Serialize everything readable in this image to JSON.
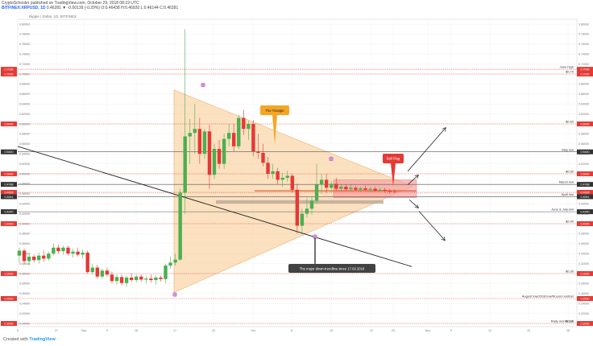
{
  "header": {
    "author": "CryptoSchooler",
    "published": "published on TradingView.com, October 29, 2018 08:19 UTC",
    "symbol_line": "BITFINEX:XRPUSD, 1D",
    "ohlc": "0.46281 ▼ -0.00139 (-0.29%) O:0.46438 H:0.46920 L:0.46144 C:0.46281"
  },
  "subtitle": "Ripple / Dollar, 1D, BITFINEX",
  "footer": {
    "prefix": "Created with",
    "logo": "TradingView"
  },
  "colors": {
    "up": "#4caf50",
    "down": "#e53935",
    "triangle": "#f8c98c",
    "level": "#e53935",
    "support": "#b0a090",
    "flag": "#f7a3a3"
  },
  "chart_data": {
    "type": "candlestick",
    "ylim": [
      0.18,
      0.82
    ],
    "y_ticks": [
      0.8,
      0.78,
      0.76,
      0.74,
      0.72,
      0.7,
      0.68,
      0.66,
      0.64,
      0.62,
      0.6,
      0.58,
      0.56,
      0.54,
      0.52,
      0.5,
      0.48,
      0.46,
      0.44,
      0.42,
      0.4,
      0.38,
      0.36,
      0.34,
      0.32,
      0.3,
      0.28,
      0.26,
      0.24,
      0.22,
      0.2
    ],
    "x_ticks": [
      "6",
      "27",
      "Sep",
      "9",
      "16",
      "17",
      "24",
      "Oct",
      "8",
      "15",
      "22",
      "29",
      "Nov",
      "5",
      "12",
      "19",
      "26"
    ],
    "candles": [
      {
        "o": 0.336,
        "h": 0.352,
        "l": 0.322,
        "c": 0.346
      },
      {
        "o": 0.346,
        "h": 0.35,
        "l": 0.318,
        "c": 0.325
      },
      {
        "o": 0.325,
        "h": 0.34,
        "l": 0.316,
        "c": 0.334
      },
      {
        "o": 0.334,
        "h": 0.338,
        "l": 0.322,
        "c": 0.327
      },
      {
        "o": 0.327,
        "h": 0.342,
        "l": 0.32,
        "c": 0.336
      },
      {
        "o": 0.336,
        "h": 0.346,
        "l": 0.324,
        "c": 0.33
      },
      {
        "o": 0.33,
        "h": 0.344,
        "l": 0.326,
        "c": 0.34
      },
      {
        "o": 0.34,
        "h": 0.36,
        "l": 0.336,
        "c": 0.352
      },
      {
        "o": 0.352,
        "h": 0.358,
        "l": 0.34,
        "c": 0.345
      },
      {
        "o": 0.345,
        "h": 0.356,
        "l": 0.338,
        "c": 0.352
      },
      {
        "o": 0.352,
        "h": 0.356,
        "l": 0.336,
        "c": 0.34
      },
      {
        "o": 0.34,
        "h": 0.35,
        "l": 0.332,
        "c": 0.344
      },
      {
        "o": 0.344,
        "h": 0.352,
        "l": 0.334,
        "c": 0.338
      },
      {
        "o": 0.338,
        "h": 0.348,
        "l": 0.33,
        "c": 0.342
      },
      {
        "o": 0.342,
        "h": 0.346,
        "l": 0.3,
        "c": 0.303
      },
      {
        "o": 0.303,
        "h": 0.32,
        "l": 0.298,
        "c": 0.312
      },
      {
        "o": 0.312,
        "h": 0.318,
        "l": 0.29,
        "c": 0.294
      },
      {
        "o": 0.294,
        "h": 0.31,
        "l": 0.29,
        "c": 0.306
      },
      {
        "o": 0.306,
        "h": 0.312,
        "l": 0.294,
        "c": 0.298
      },
      {
        "o": 0.298,
        "h": 0.304,
        "l": 0.28,
        "c": 0.285
      },
      {
        "o": 0.285,
        "h": 0.298,
        "l": 0.278,
        "c": 0.293
      },
      {
        "o": 0.293,
        "h": 0.298,
        "l": 0.276,
        "c": 0.281
      },
      {
        "o": 0.281,
        "h": 0.296,
        "l": 0.274,
        "c": 0.292
      },
      {
        "o": 0.292,
        "h": 0.3,
        "l": 0.283,
        "c": 0.287
      },
      {
        "o": 0.287,
        "h": 0.298,
        "l": 0.282,
        "c": 0.294
      },
      {
        "o": 0.294,
        "h": 0.298,
        "l": 0.284,
        "c": 0.288
      },
      {
        "o": 0.288,
        "h": 0.296,
        "l": 0.28,
        "c": 0.29
      },
      {
        "o": 0.29,
        "h": 0.298,
        "l": 0.282,
        "c": 0.287
      },
      {
        "o": 0.287,
        "h": 0.296,
        "l": 0.278,
        "c": 0.292
      },
      {
        "o": 0.292,
        "h": 0.296,
        "l": 0.284,
        "c": 0.289
      },
      {
        "o": 0.289,
        "h": 0.32,
        "l": 0.28,
        "c": 0.316
      },
      {
        "o": 0.316,
        "h": 0.334,
        "l": 0.31,
        "c": 0.322
      },
      {
        "o": 0.322,
        "h": 0.34,
        "l": 0.316,
        "c": 0.328
      },
      {
        "o": 0.328,
        "h": 0.47,
        "l": 0.326,
        "c": 0.462
      },
      {
        "o": 0.462,
        "h": 0.79,
        "l": 0.42,
        "c": 0.575
      },
      {
        "o": 0.575,
        "h": 0.61,
        "l": 0.52,
        "c": 0.582
      },
      {
        "o": 0.582,
        "h": 0.64,
        "l": 0.54,
        "c": 0.59
      },
      {
        "o": 0.59,
        "h": 0.612,
        "l": 0.52,
        "c": 0.54
      },
      {
        "o": 0.54,
        "h": 0.59,
        "l": 0.53,
        "c": 0.585
      },
      {
        "o": 0.585,
        "h": 0.598,
        "l": 0.47,
        "c": 0.498
      },
      {
        "o": 0.498,
        "h": 0.56,
        "l": 0.49,
        "c": 0.55
      },
      {
        "o": 0.55,
        "h": 0.568,
        "l": 0.51,
        "c": 0.52
      },
      {
        "o": 0.52,
        "h": 0.58,
        "l": 0.51,
        "c": 0.57
      },
      {
        "o": 0.57,
        "h": 0.6,
        "l": 0.555,
        "c": 0.582
      },
      {
        "o": 0.582,
        "h": 0.6,
        "l": 0.545,
        "c": 0.555
      },
      {
        "o": 0.555,
        "h": 0.618,
        "l": 0.55,
        "c": 0.612
      },
      {
        "o": 0.612,
        "h": 0.628,
        "l": 0.578,
        "c": 0.59
      },
      {
        "o": 0.59,
        "h": 0.606,
        "l": 0.568,
        "c": 0.6
      },
      {
        "o": 0.6,
        "h": 0.608,
        "l": 0.535,
        "c": 0.545
      },
      {
        "o": 0.545,
        "h": 0.58,
        "l": 0.53,
        "c": 0.542
      },
      {
        "o": 0.542,
        "h": 0.56,
        "l": 0.515,
        "c": 0.522
      },
      {
        "o": 0.522,
        "h": 0.534,
        "l": 0.49,
        "c": 0.5
      },
      {
        "o": 0.5,
        "h": 0.52,
        "l": 0.49,
        "c": 0.505
      },
      {
        "o": 0.505,
        "h": 0.512,
        "l": 0.478,
        "c": 0.488
      },
      {
        "o": 0.488,
        "h": 0.502,
        "l": 0.474,
        "c": 0.492
      },
      {
        "o": 0.492,
        "h": 0.506,
        "l": 0.484,
        "c": 0.496
      },
      {
        "o": 0.496,
        "h": 0.5,
        "l": 0.462,
        "c": 0.468
      },
      {
        "o": 0.468,
        "h": 0.48,
        "l": 0.38,
        "c": 0.396
      },
      {
        "o": 0.396,
        "h": 0.43,
        "l": 0.378,
        "c": 0.42
      },
      {
        "o": 0.42,
        "h": 0.452,
        "l": 0.412,
        "c": 0.43
      },
      {
        "o": 0.43,
        "h": 0.454,
        "l": 0.418,
        "c": 0.446
      },
      {
        "o": 0.446,
        "h": 0.52,
        "l": 0.44,
        "c": 0.478
      },
      {
        "o": 0.478,
        "h": 0.5,
        "l": 0.46,
        "c": 0.488
      },
      {
        "o": 0.488,
        "h": 0.5,
        "l": 0.462,
        "c": 0.472
      },
      {
        "o": 0.472,
        "h": 0.486,
        "l": 0.464,
        "c": 0.48
      },
      {
        "o": 0.48,
        "h": 0.492,
        "l": 0.466,
        "c": 0.47
      },
      {
        "o": 0.47,
        "h": 0.48,
        "l": 0.464,
        "c": 0.474
      },
      {
        "o": 0.474,
        "h": 0.478,
        "l": 0.466,
        "c": 0.469
      },
      {
        "o": 0.469,
        "h": 0.478,
        "l": 0.464,
        "c": 0.472
      },
      {
        "o": 0.472,
        "h": 0.476,
        "l": 0.466,
        "c": 0.468
      },
      {
        "o": 0.468,
        "h": 0.474,
        "l": 0.464,
        "c": 0.471
      },
      {
        "o": 0.471,
        "h": 0.476,
        "l": 0.466,
        "c": 0.468
      },
      {
        "o": 0.468,
        "h": 0.474,
        "l": 0.462,
        "c": 0.47
      },
      {
        "o": 0.47,
        "h": 0.474,
        "l": 0.464,
        "c": 0.466
      },
      {
        "o": 0.466,
        "h": 0.472,
        "l": 0.462,
        "c": 0.468
      },
      {
        "o": 0.468,
        "h": 0.472,
        "l": 0.462,
        "c": 0.466
      },
      {
        "o": 0.466,
        "h": 0.47,
        "l": 0.46,
        "c": 0.464
      },
      {
        "o": 0.464,
        "h": 0.469,
        "l": 0.461,
        "c": 0.463
      }
    ],
    "levels": [
      {
        "price": 0.7095,
        "label": "June high",
        "box": "0.7095",
        "fib": ""
      },
      {
        "price": 0.7,
        "label": "",
        "box": "0.7000",
        "fib": "$0.70"
      },
      {
        "price": 0.6,
        "label": "",
        "box": "0.6000",
        "fib": "$0.60"
      },
      {
        "price": 0.544,
        "label": "May low",
        "box": "0.5440",
        "fib": ""
      },
      {
        "price": 0.5,
        "label": "",
        "box": "0.5000",
        "fib": "$0.50"
      },
      {
        "price": 0.4788,
        "label": "March low",
        "box": "0.4788",
        "fib": ""
      },
      {
        "price": 0.4628,
        "label": "",
        "box": "0.4628",
        "fib": ""
      },
      {
        "price": 0.4541,
        "label": "April low",
        "box": "0.4541",
        "fib": ""
      },
      {
        "price": 0.424,
        "label": "June & July low",
        "box": "0.4240",
        "fib": ""
      },
      {
        "price": 0.4,
        "label": "",
        "box": "0.4000",
        "fib": "$0.40"
      },
      {
        "price": 0.3,
        "label": "",
        "box": "0.3000",
        "fib": "$0.30"
      },
      {
        "price": 0.25,
        "label": "August low/2018 low/Round number",
        "box": "0.2500",
        "fib": ""
      },
      {
        "price": 0.2,
        "label": "Rally month low",
        "box": "0.2000",
        "fib": "$0.20"
      }
    ],
    "annotations": {
      "triangle": "The Triangle",
      "bull_flag": "Bull Flag",
      "trendline": "The major down-trendline since 17.02.2018"
    }
  }
}
